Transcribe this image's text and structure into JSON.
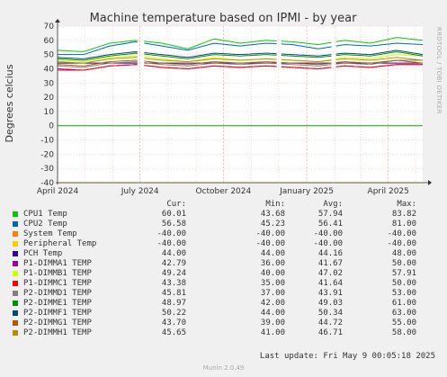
{
  "chart_data": {
    "type": "line",
    "title": "Machine temperature based on IPMI - by year",
    "ylabel": "Degrees celcius",
    "side_label": "RRDTOOL / TOBI OETIKER",
    "ylim": [
      -40,
      70
    ],
    "yticks": [
      70,
      60,
      50,
      40,
      30,
      20,
      10,
      0,
      -10,
      -20,
      -30,
      -40
    ],
    "xlim": [
      "2024-04-01",
      "2025-05-09"
    ],
    "xticks": [
      {
        "label": "April 2024",
        "date": "2024-04-01"
      },
      {
        "label": "July 2024",
        "date": "2024-07-01"
      },
      {
        "label": "October 2024",
        "date": "2024-10-01"
      },
      {
        "label": "January 2025",
        "date": "2025-01-01"
      },
      {
        "label": "April 2025",
        "date": "2025-04-01"
      }
    ],
    "gaps": [
      [
        "2024-06-29",
        "2024-07-04"
      ],
      [
        "2024-11-29",
        "2024-12-03"
      ],
      [
        "2025-01-29",
        "2025-02-02"
      ]
    ],
    "grid": true,
    "columns": {
      "cur": "Cur:",
      "min": "Min:",
      "avg": "Avg:",
      "max": "Max:"
    },
    "series": [
      {
        "name": "CPU1 Temp",
        "color": "#00cc00",
        "cur": "60.01",
        "min": "43.68",
        "avg": "57.94",
        "max": "83.82",
        "values": [
          53,
          52,
          58,
          60,
          58,
          54,
          61,
          58,
          60,
          59,
          57,
          60,
          58,
          62,
          60
        ]
      },
      {
        "name": "CPU2 Temp",
        "color": "#0066b3",
        "cur": "56.58",
        "min": "45.23",
        "avg": "56.41",
        "max": "81.00",
        "values": [
          50,
          50,
          56,
          59,
          56,
          53,
          58,
          56,
          58,
          57,
          54,
          57,
          56,
          58,
          57
        ]
      },
      {
        "name": "System Temp",
        "color": "#ff8000",
        "cur": "-40.00",
        "min": "-40.00",
        "avg": "-40.00",
        "max": "-40.00",
        "values": [
          -40,
          -40,
          -40,
          -40,
          -40,
          -40,
          -40,
          -40,
          -40,
          -40,
          -40,
          -40,
          -40,
          -40,
          -40
        ]
      },
      {
        "name": "Peripheral Temp",
        "color": "#ffcc00",
        "cur": "-40.00",
        "min": "-40.00",
        "avg": "-40.00",
        "max": "-40.00",
        "values": [
          -40,
          -40,
          -40,
          -40,
          -40,
          -40,
          -40,
          -40,
          -40,
          -40,
          -40,
          -40,
          -40,
          -40,
          -40
        ]
      },
      {
        "name": "PCH Temp",
        "color": "#330099",
        "cur": "44.00",
        "min": "44.00",
        "avg": "44.16",
        "max": "48.00",
        "values": [
          44,
          44,
          44,
          44,
          44,
          44,
          44,
          44,
          44,
          44,
          44,
          44,
          44,
          44,
          44
        ]
      },
      {
        "name": "P1-DIMMA1 TEMP",
        "color": "#990099",
        "cur": "42.79",
        "min": "36.00",
        "avg": "41.67",
        "max": "50.00",
        "values": [
          40,
          39,
          42,
          43,
          41,
          40,
          42,
          41,
          42,
          41,
          40,
          42,
          41,
          43,
          43
        ]
      },
      {
        "name": "P1-DIMMB1 TEMP",
        "color": "#ccff00",
        "cur": "49.24",
        "min": "40.00",
        "avg": "47.02",
        "max": "57.91",
        "values": [
          46,
          45,
          48,
          49,
          47,
          45,
          48,
          46,
          47,
          46,
          45,
          48,
          47,
          50,
          49
        ]
      },
      {
        "name": "P1-DIMMC1 TEMP",
        "color": "#ff0000",
        "cur": "43.38",
        "min": "35.00",
        "avg": "41.64",
        "max": "50.00",
        "values": [
          39,
          39,
          42,
          43,
          41,
          40,
          42,
          41,
          42,
          41,
          40,
          42,
          41,
          43,
          43
        ]
      },
      {
        "name": "P2-DIMMD1 TEMP",
        "color": "#808080",
        "cur": "45.81",
        "min": "37.00",
        "avg": "43.91",
        "max": "53.00",
        "values": [
          42,
          41,
          44,
          45,
          43,
          42,
          44,
          43,
          44,
          43,
          42,
          44,
          43,
          46,
          46
        ]
      },
      {
        "name": "P2-DIMME1 TEMP",
        "color": "#008f00",
        "cur": "48.97",
        "min": "42.00",
        "avg": "49.03",
        "max": "61.00",
        "values": [
          47,
          46,
          49,
          51,
          49,
          47,
          50,
          49,
          50,
          49,
          48,
          50,
          49,
          52,
          49
        ]
      },
      {
        "name": "P2-DIMMF1 TEMP",
        "color": "#00487d",
        "cur": "50.22",
        "min": "44.00",
        "avg": "50.34",
        "max": "63.00",
        "values": [
          48,
          47,
          50,
          52,
          50,
          48,
          51,
          50,
          51,
          50,
          49,
          51,
          50,
          53,
          50
        ]
      },
      {
        "name": "P2-DIMMG1 TEMP",
        "color": "#b35a00",
        "cur": "43.70",
        "min": "39.00",
        "avg": "44.72",
        "max": "55.00",
        "values": [
          43,
          42,
          45,
          46,
          44,
          43,
          45,
          44,
          45,
          44,
          43,
          45,
          44,
          46,
          44
        ]
      },
      {
        "name": "P2-DIMMH1 TEMP",
        "color": "#b38f00",
        "cur": "45.65",
        "min": "41.00",
        "avg": "46.71",
        "max": "58.00",
        "values": [
          45,
          44,
          47,
          48,
          46,
          45,
          47,
          46,
          47,
          46,
          45,
          47,
          46,
          48,
          46
        ]
      }
    ],
    "zero_line_color": "#00aa00"
  },
  "footer": {
    "last_update": "Last update: Fri May  9 00:05:18 2025",
    "version": "Munin 2.0.49"
  }
}
